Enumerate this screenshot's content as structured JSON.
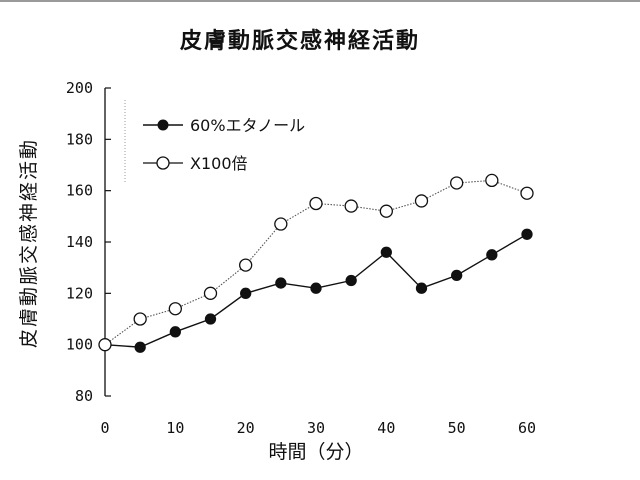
{
  "chart_data": {
    "type": "line",
    "title": "皮膚動脈交感神経活動",
    "xlabel": "時間（分）",
    "ylabel": "皮膚動脈交感神経活動",
    "xlim": [
      0,
      60
    ],
    "ylim": [
      80,
      200
    ],
    "x_ticks": [
      "0",
      "10",
      "20",
      "30",
      "40",
      "50",
      "60"
    ],
    "y_ticks": [
      "80",
      "100",
      "120",
      "140",
      "160",
      "180",
      "200"
    ],
    "x": [
      0,
      5,
      10,
      15,
      20,
      25,
      30,
      35,
      40,
      45,
      50,
      55,
      60
    ],
    "series": [
      {
        "name": "60%エタノール",
        "marker": "filled-circle",
        "line": "solid",
        "values": [
          100,
          99,
          105,
          110,
          120,
          124,
          122,
          125,
          136,
          122,
          127,
          135,
          143
        ]
      },
      {
        "name": "X100倍",
        "marker": "open-circle",
        "line": "dotted",
        "values": [
          100,
          110,
          114,
          120,
          131,
          147,
          155,
          154,
          152,
          156,
          163,
          164,
          159
        ]
      }
    ],
    "legend_position": "top-left",
    "grid": false
  }
}
